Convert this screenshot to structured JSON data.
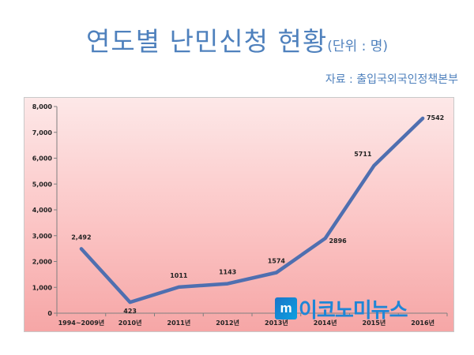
{
  "header": {
    "title": "연도별 난민신청 현황",
    "unit": "(단위 : 명)",
    "source": "자료 : 출입국외국인정책본부"
  },
  "watermark": {
    "text": "이코노미뉴스",
    "logo_letter": "m"
  },
  "colors": {
    "line": "#4f6fb0",
    "title": "#4f81bd",
    "axis": "#7f7f7f"
  },
  "chart_data": {
    "type": "line",
    "categories": [
      "1994~2009년",
      "2010년",
      "2011년",
      "2012년",
      "2013년",
      "2014년",
      "2015년",
      "2016년"
    ],
    "series": [
      {
        "values": [
          2492,
          423,
          1011,
          1143,
          1574,
          2896,
          5711,
          7542
        ]
      }
    ],
    "data_labels": [
      "2,492",
      "423",
      "1011",
      "1143",
      "1574",
      "2896",
      "5711",
      "7542"
    ],
    "yticks": [
      "0",
      "1,000",
      "2,000",
      "3,000",
      "4,000",
      "5,000",
      "6,000",
      "7,000",
      "8,000"
    ],
    "ylim": [
      0,
      8000
    ],
    "grid": false,
    "title": "",
    "xlabel": "",
    "ylabel": ""
  }
}
